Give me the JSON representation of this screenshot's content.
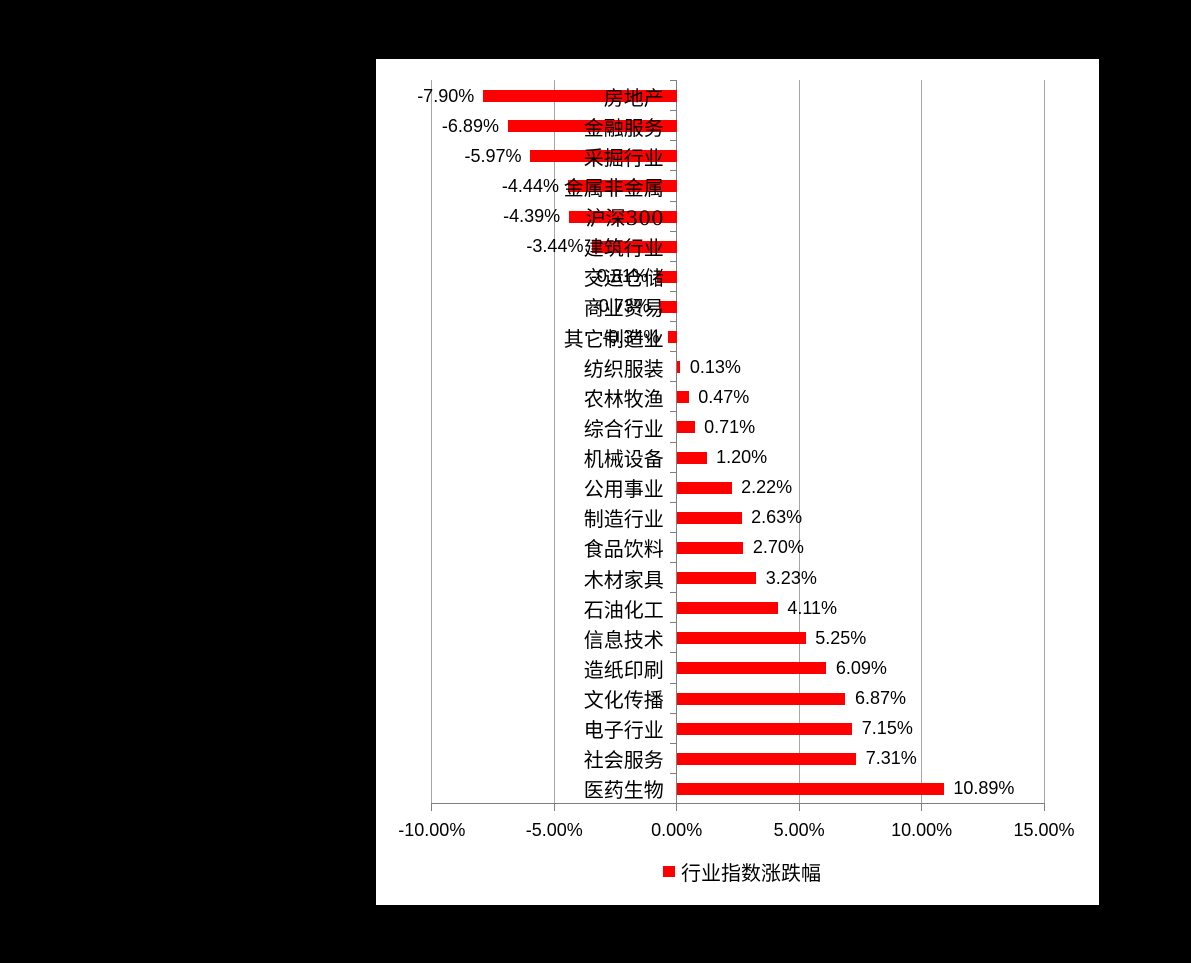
{
  "window": {
    "background_color": "#000000",
    "chart_background_color": "#ffffff"
  },
  "chart_data": {
    "type": "bar",
    "orientation": "horizontal",
    "bar_color": "#ff0000",
    "text_color": "#000000",
    "gridline_color": "#a6a6a6",
    "axis_color": "#7f7f7f",
    "grid": "vertical-gridlines-on",
    "legend_position": "bottom",
    "legend": {
      "label": "行业指数涨跌幅",
      "swatch_color": "#ff0000"
    },
    "xlim": [
      -10,
      15
    ],
    "x_ticks": [
      {
        "value": -10,
        "label": "-10.00%"
      },
      {
        "value": -5,
        "label": "-5.00%"
      },
      {
        "value": 0,
        "label": "0.00%"
      },
      {
        "value": 5,
        "label": "5.00%"
      },
      {
        "value": 10,
        "label": "10.00%"
      },
      {
        "value": 15,
        "label": "15.00%"
      }
    ],
    "series_name": "行业指数涨跌幅",
    "categories": [
      {
        "label": "房地产",
        "value": -7.9,
        "value_label": "-7.90%"
      },
      {
        "label": "金融服务",
        "value": -6.89,
        "value_label": "-6.89%"
      },
      {
        "label": "采掘行业",
        "value": -5.97,
        "value_label": "-5.97%"
      },
      {
        "label": "金属非金属",
        "value": -4.44,
        "value_label": "-4.44%"
      },
      {
        "label": "沪深300",
        "value": -4.39,
        "value_label": "-4.39%"
      },
      {
        "label": "建筑行业",
        "value": -3.44,
        "value_label": "-3.44%"
      },
      {
        "label": "交运仓储",
        "value": -0.81,
        "value_label": "-0.81%"
      },
      {
        "label": "商业贸易",
        "value": -0.73,
        "value_label": "-0.73%"
      },
      {
        "label": "其它制造业",
        "value": -0.34,
        "value_label": "-0.34%"
      },
      {
        "label": "纺织服装",
        "value": 0.13,
        "value_label": "0.13%"
      },
      {
        "label": "农林牧渔",
        "value": 0.47,
        "value_label": "0.47%"
      },
      {
        "label": "综合行业",
        "value": 0.71,
        "value_label": "0.71%"
      },
      {
        "label": "机械设备",
        "value": 1.2,
        "value_label": "1.20%"
      },
      {
        "label": "公用事业",
        "value": 2.22,
        "value_label": "2.22%"
      },
      {
        "label": "制造行业",
        "value": 2.63,
        "value_label": "2.63%"
      },
      {
        "label": "食品饮料",
        "value": 2.7,
        "value_label": "2.70%"
      },
      {
        "label": "木材家具",
        "value": 3.23,
        "value_label": "3.23%"
      },
      {
        "label": "石油化工",
        "value": 4.11,
        "value_label": "4.11%"
      },
      {
        "label": "信息技术",
        "value": 5.25,
        "value_label": "5.25%"
      },
      {
        "label": "造纸印刷",
        "value": 6.09,
        "value_label": "6.09%"
      },
      {
        "label": "文化传播",
        "value": 6.87,
        "value_label": "6.87%"
      },
      {
        "label": "电子行业",
        "value": 7.15,
        "value_label": "7.15%"
      },
      {
        "label": "社会服务",
        "value": 7.31,
        "value_label": "7.31%"
      },
      {
        "label": "医药生物",
        "value": 10.89,
        "value_label": "10.89%"
      }
    ]
  }
}
